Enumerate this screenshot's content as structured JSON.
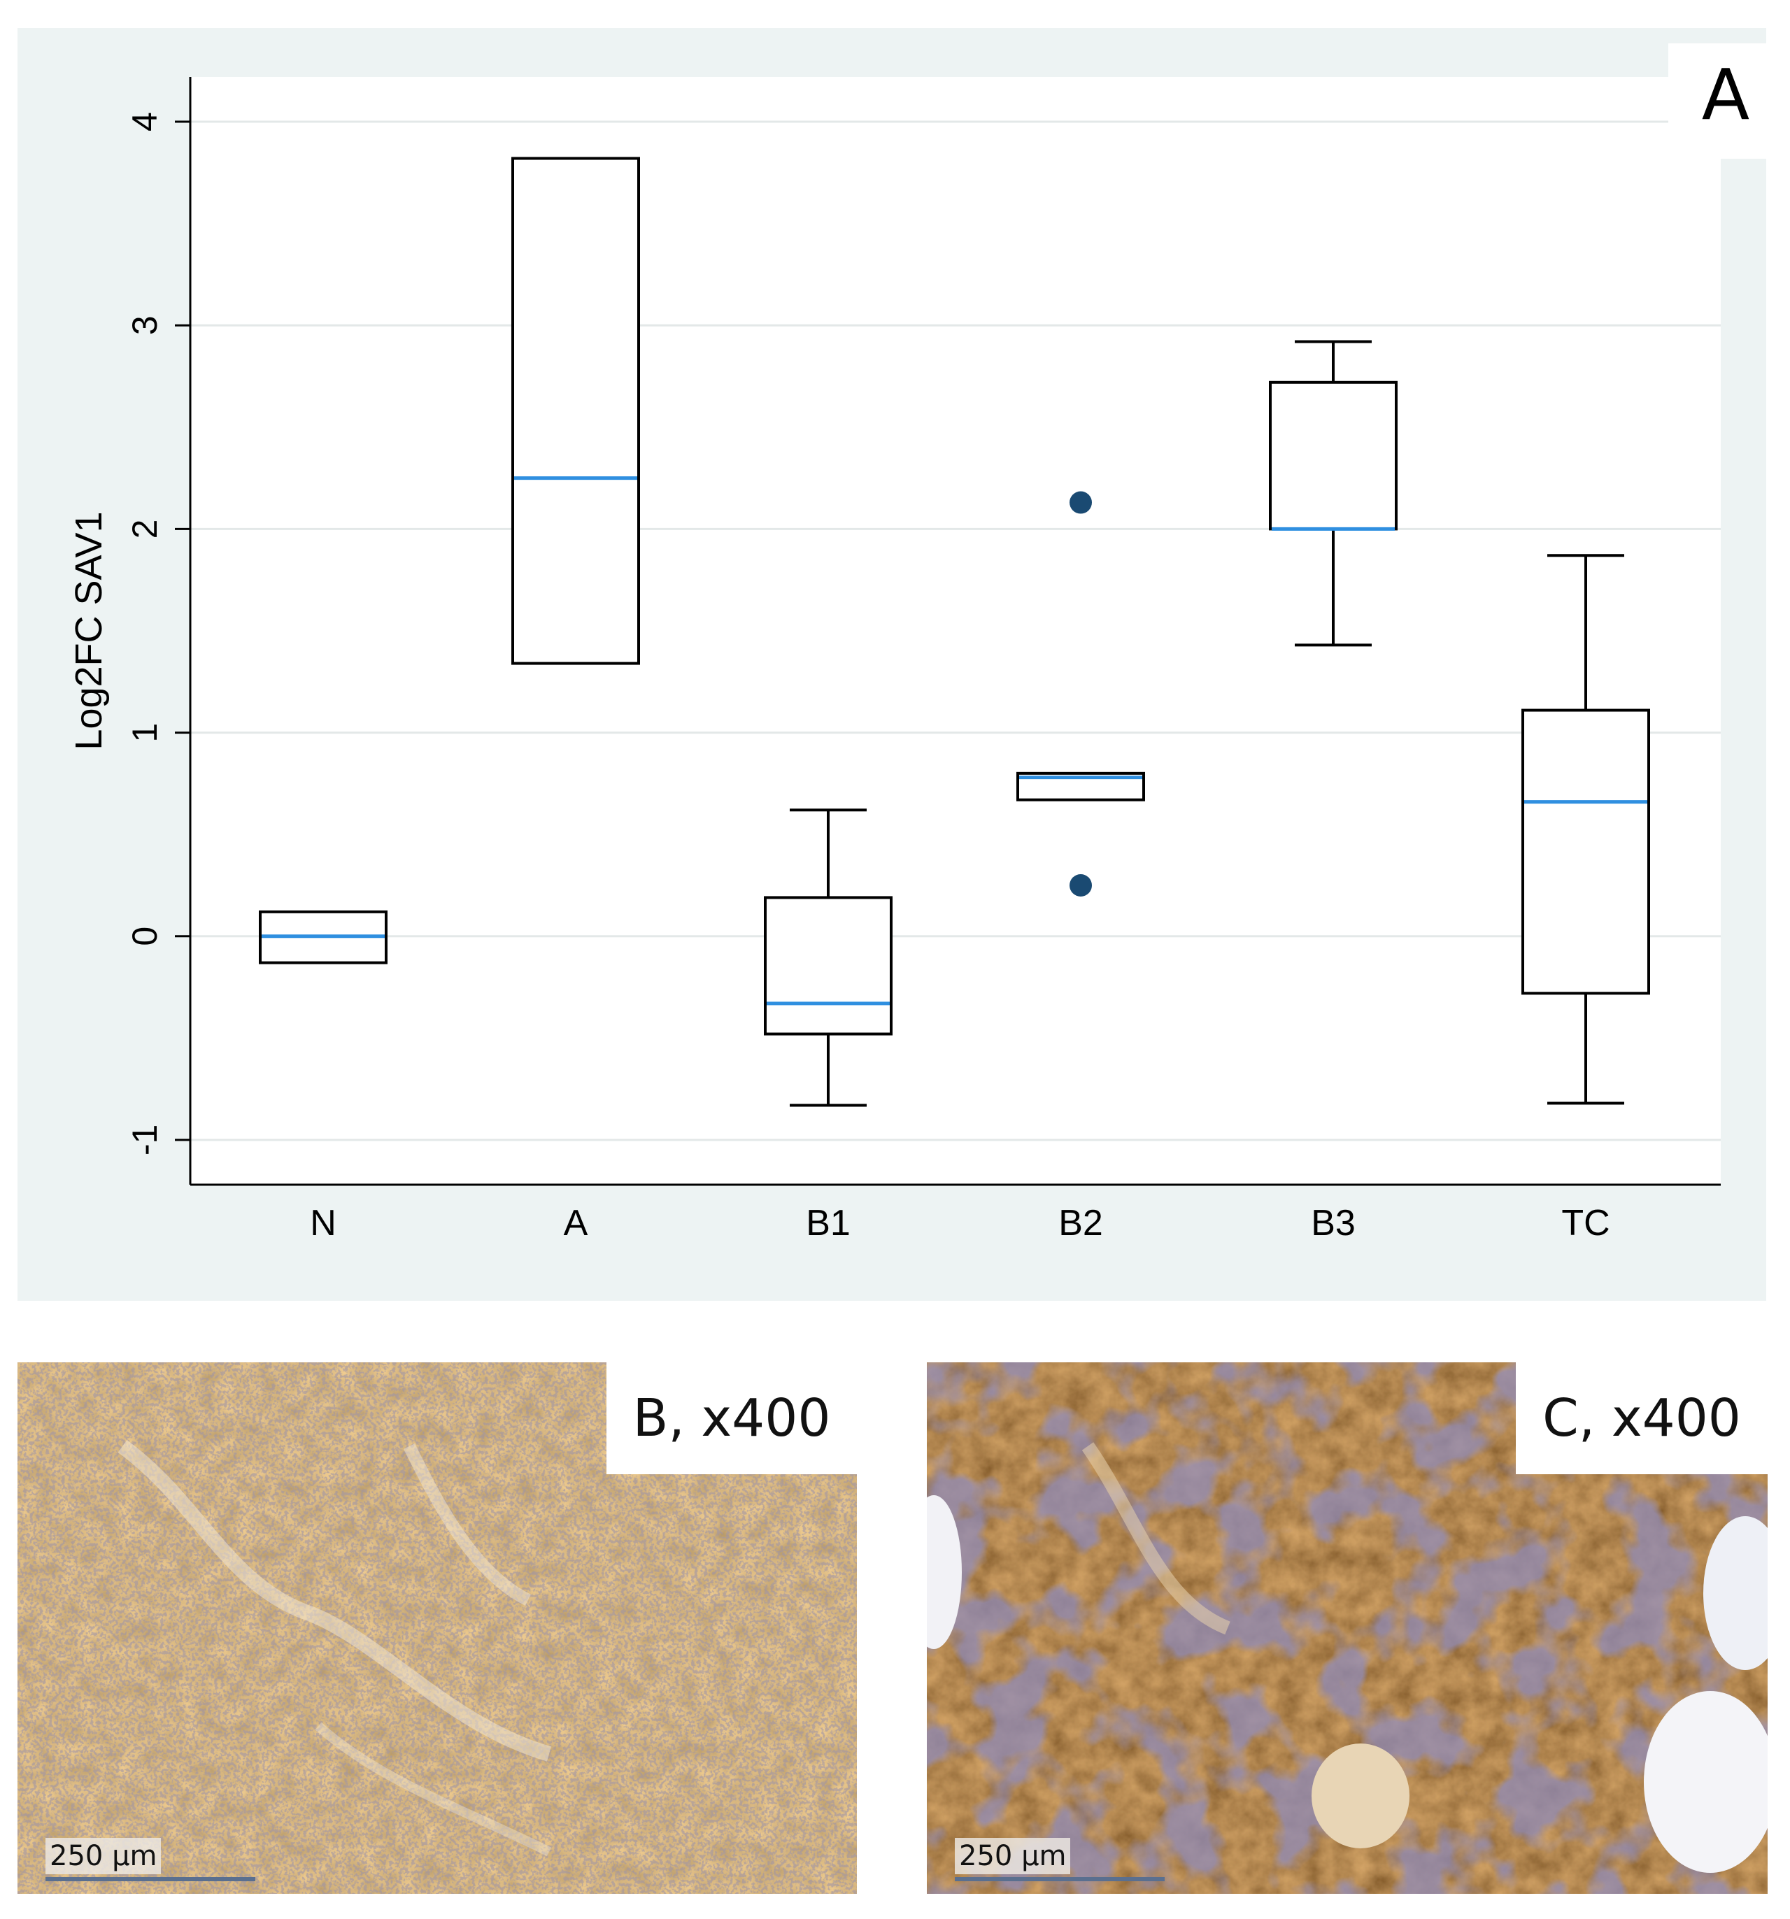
{
  "chart_data": {
    "type": "boxplot",
    "panel_label": "A",
    "ylabel": "Log2FC SAV1",
    "xlabel": "",
    "ylim": [
      -1.22,
      4.22
    ],
    "yticks": [
      -1,
      0,
      1,
      2,
      3,
      4
    ],
    "ytick_labels": [
      "-1",
      "0",
      "1",
      "2",
      "3",
      "4"
    ],
    "grid": true,
    "colors": {
      "panel_bg": "#edf3f3",
      "plot_bg": "#ffffff",
      "box_edge": "#000000",
      "median": "#2f8fe0",
      "outlier": "#1a4a72",
      "grid": "#e3e8e8"
    },
    "categories": [
      "N",
      "A",
      "B1",
      "B2",
      "B3",
      "TC"
    ],
    "boxes": [
      {
        "category": "N",
        "q1": -0.13,
        "median": 0.0,
        "q3": 0.12,
        "whisker_low": null,
        "whisker_high": null,
        "outliers": []
      },
      {
        "category": "A",
        "q1": 1.34,
        "median": 2.25,
        "q3": 3.82,
        "whisker_low": null,
        "whisker_high": null,
        "outliers": []
      },
      {
        "category": "B1",
        "q1": -0.48,
        "median": -0.33,
        "q3": 0.19,
        "whisker_low": -0.83,
        "whisker_high": 0.62,
        "outliers": []
      },
      {
        "category": "B2",
        "q1": 0.67,
        "median": 0.78,
        "q3": 0.8,
        "whisker_low": null,
        "whisker_high": null,
        "outliers": [
          2.13,
          0.25
        ]
      },
      {
        "category": "B3",
        "q1": 2.0,
        "median": 2.0,
        "q3": 2.72,
        "whisker_low": 1.43,
        "whisker_high": 2.92,
        "outliers": []
      },
      {
        "category": "TC",
        "q1": -0.28,
        "median": 0.66,
        "q3": 1.11,
        "whisker_low": -0.82,
        "whisker_high": 1.87,
        "outliers": []
      }
    ]
  },
  "photos": [
    {
      "label": "B, x400",
      "scale_label": "250 µm"
    },
    {
      "label": "C, x400",
      "scale_label": "250 µm"
    }
  ]
}
